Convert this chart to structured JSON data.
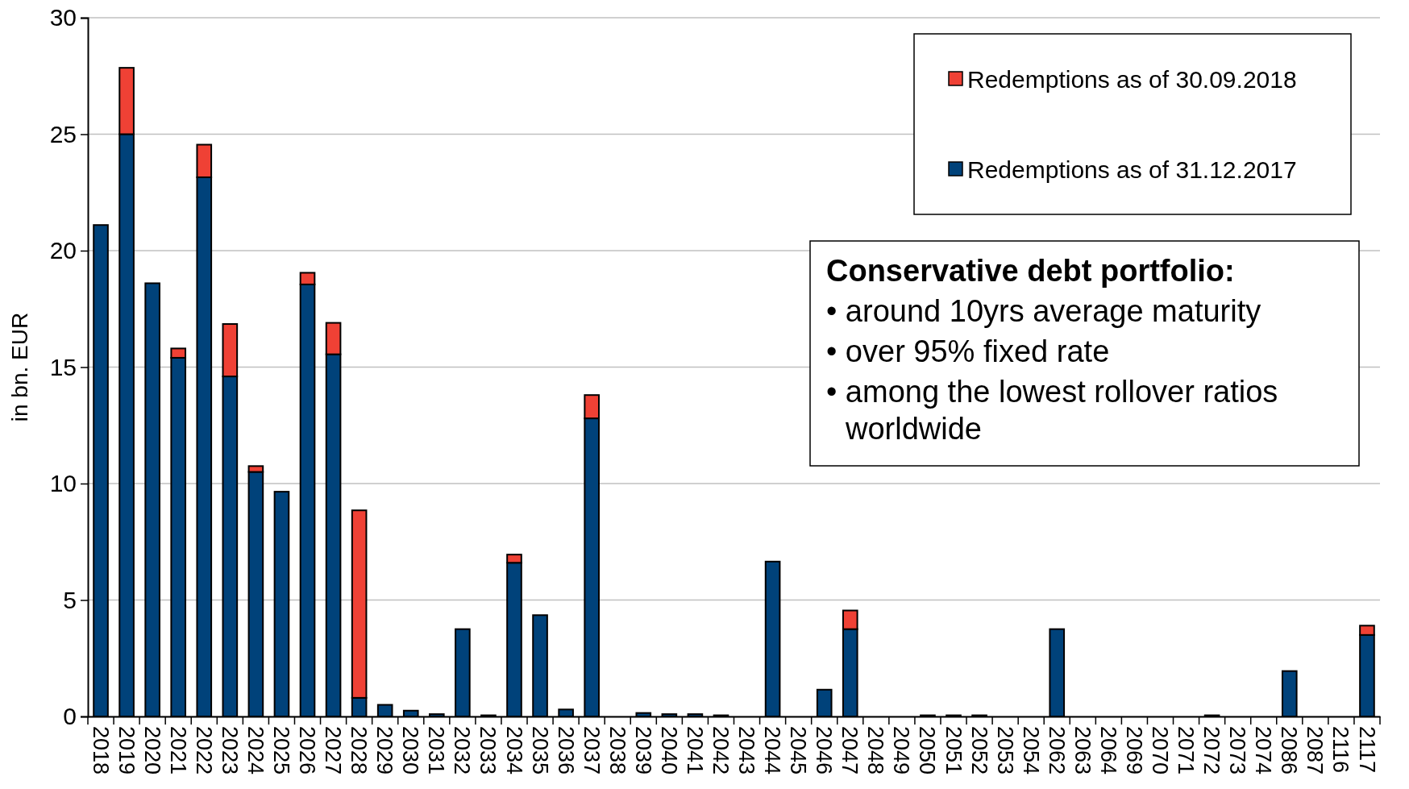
{
  "chart_data": {
    "type": "bar",
    "stacked": true,
    "ylabel": "in bn. EUR",
    "ylim": [
      0,
      30
    ],
    "yticks": [
      0,
      5,
      10,
      15,
      20,
      25,
      30
    ],
    "grid": "y",
    "legend": "top right",
    "categories": [
      "2018",
      "2019",
      "2020",
      "2021",
      "2022",
      "2023",
      "2024",
      "2025",
      "2026",
      "2027",
      "2028",
      "2029",
      "2030",
      "2031",
      "2032",
      "2033",
      "2034",
      "2035",
      "2036",
      "2037",
      "2038",
      "2039",
      "2040",
      "2041",
      "2042",
      "2043",
      "2044",
      "2045",
      "2046",
      "2047",
      "2048",
      "2049",
      "2050",
      "2051",
      "2052",
      "2053",
      "2054",
      "2062",
      "2063",
      "2064",
      "2069",
      "2070",
      "2071",
      "2072",
      "2073",
      "2074",
      "2086",
      "2087",
      "2116",
      "2117"
    ],
    "series": [
      {
        "name": "Redemptions as of 31.12.2017",
        "color": "#00427a",
        "values": [
          21.1,
          25.0,
          18.6,
          15.4,
          23.15,
          14.6,
          10.5,
          9.65,
          18.55,
          15.55,
          0.8,
          0.5,
          0.25,
          0.1,
          3.75,
          0.05,
          6.6,
          4.35,
          0.3,
          12.8,
          0,
          0.15,
          0.1,
          0.1,
          0.05,
          0,
          6.65,
          0,
          1.15,
          3.75,
          0,
          0,
          0.05,
          0.05,
          0.05,
          0,
          0,
          3.75,
          0,
          0,
          0,
          0,
          0,
          0.05,
          0,
          0,
          1.95,
          0,
          0,
          3.5
        ]
      },
      {
        "name": "Redemptions as of 30.09.2018",
        "color": "#ef4135",
        "values": [
          0,
          2.85,
          0,
          0.4,
          1.4,
          2.25,
          0.25,
          0,
          0.5,
          1.35,
          8.05,
          0,
          0,
          0,
          0,
          0,
          0.35,
          0,
          0,
          1.0,
          0,
          0,
          0,
          0,
          0,
          0,
          0,
          0,
          0,
          0.8,
          0,
          0,
          0,
          0,
          0,
          0,
          0,
          0,
          0,
          0,
          0,
          0,
          0,
          0,
          0,
          0,
          0,
          0,
          0,
          0.4
        ]
      }
    ],
    "annotations": [
      "Conservative debt portfolio:",
      "• around 10yrs average maturity",
      "• over 95% fixed rate",
      "• among the lowest rollover ratios worldwide"
    ]
  }
}
